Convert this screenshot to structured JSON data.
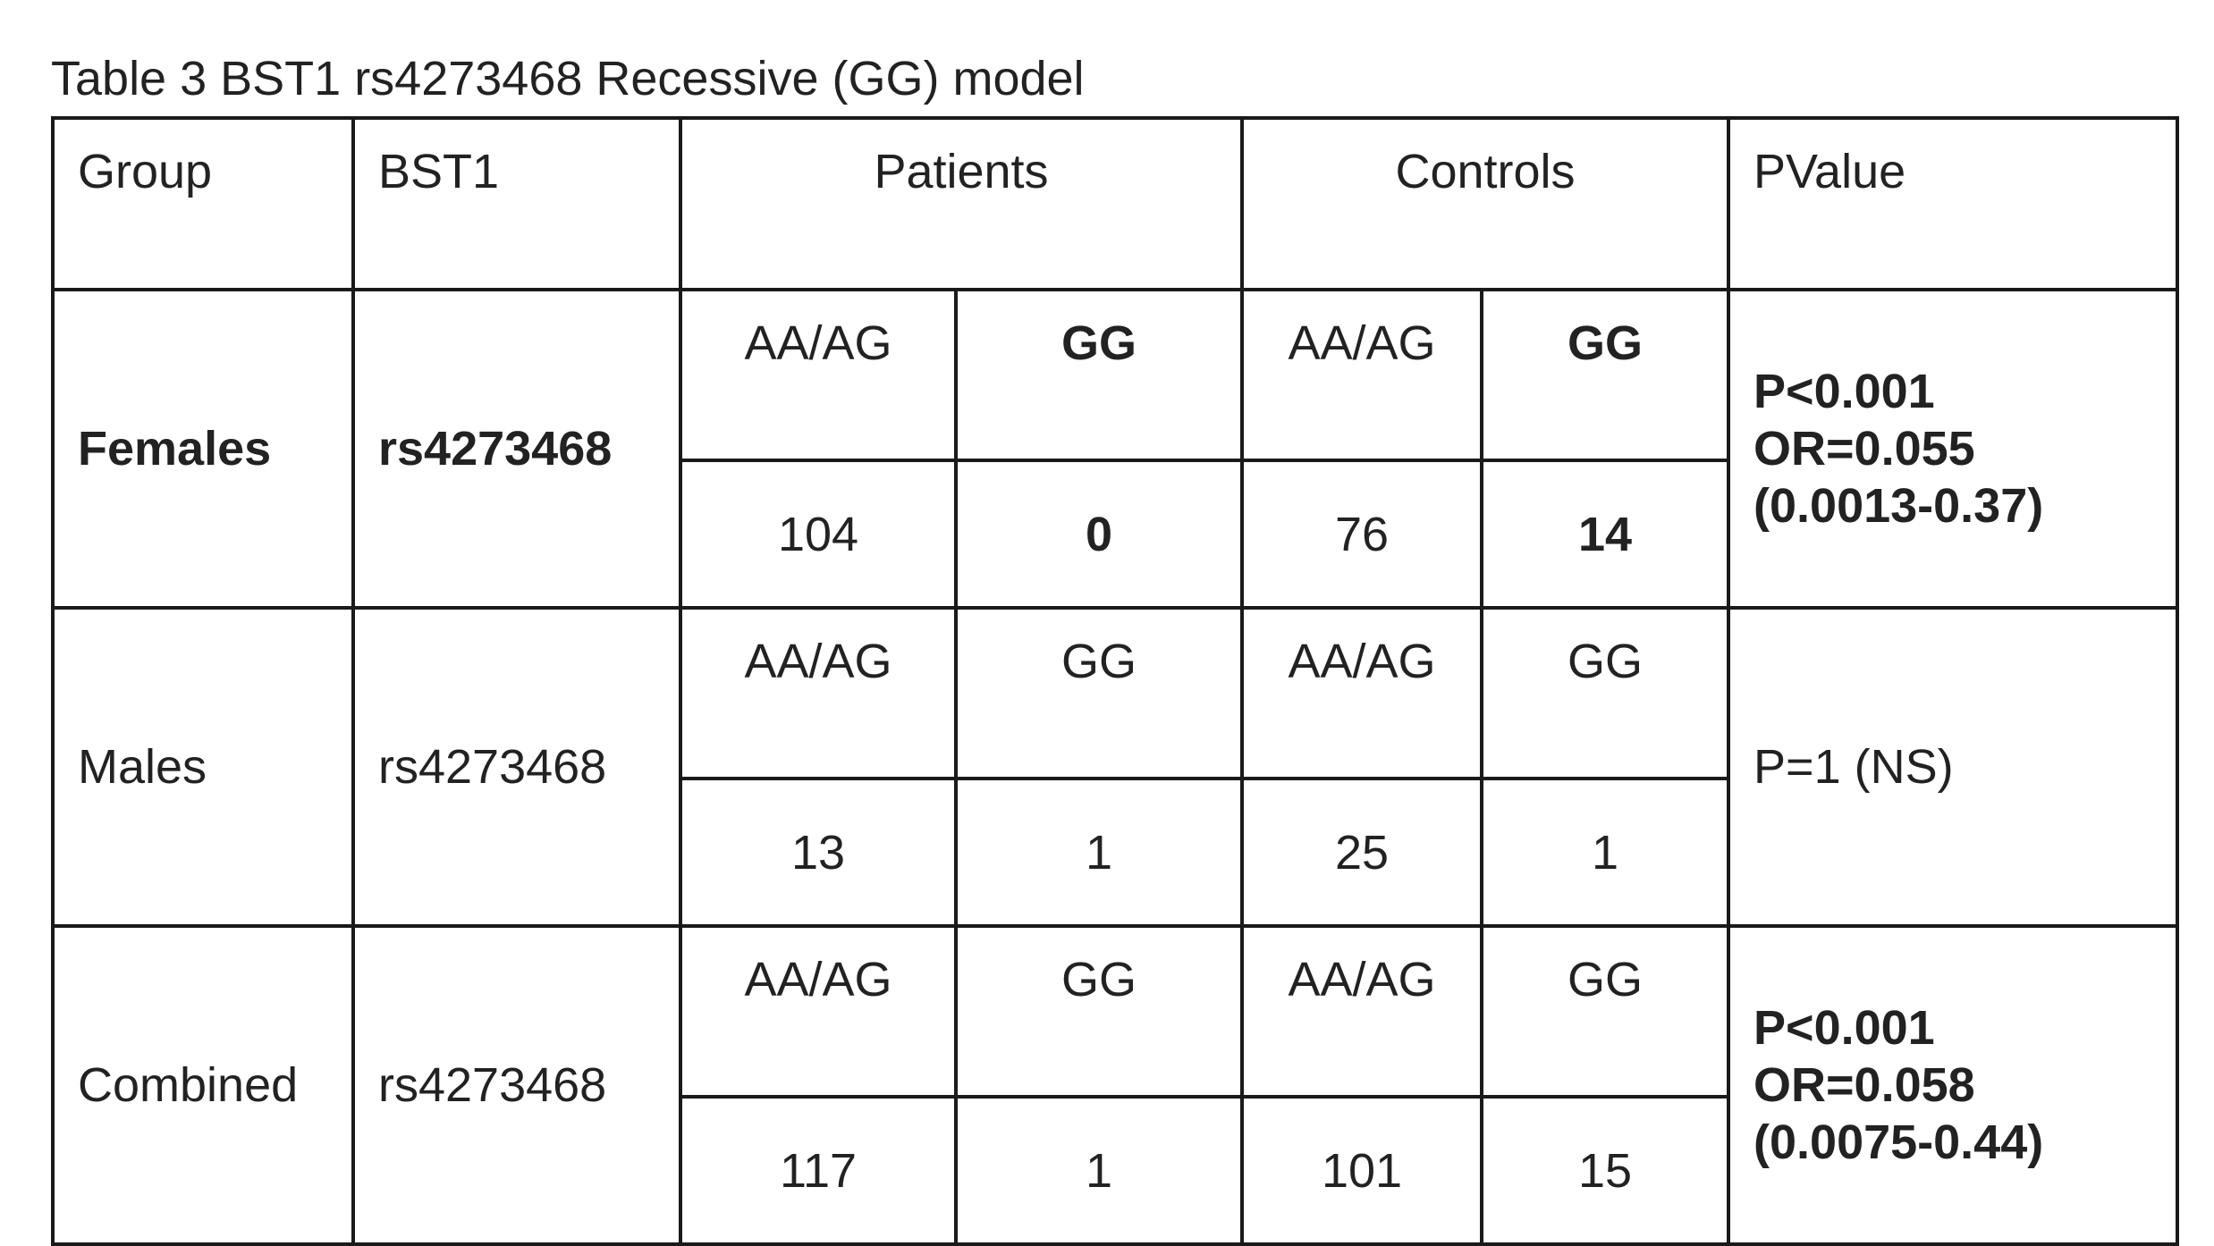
{
  "caption": "Table 3 BST1 rs4273468 Recessive (GG) model",
  "headers": {
    "group": "Group",
    "bst1": "BST1",
    "patients": "Patients",
    "controls": "Controls",
    "pvalue": "PValue"
  },
  "rows": [
    {
      "group": "Females",
      "snp": "rs4273468",
      "emphasis": true,
      "patients_aa_ag_label": "AA/AG",
      "patients_gg_label": "GG",
      "controls_aa_ag_label": "AA/AG",
      "controls_gg_label": "GG",
      "patients_aa_ag": "104",
      "patients_gg": "0",
      "controls_aa_ag": "76",
      "controls_gg": "14",
      "pvalue_lines": [
        "P<0.001",
        "OR=0.055",
        "(0.0013-0.37)"
      ]
    },
    {
      "group": "Males",
      "snp": "rs4273468",
      "emphasis": false,
      "patients_aa_ag_label": "AA/AG",
      "patients_gg_label": "GG",
      "controls_aa_ag_label": "AA/AG",
      "controls_gg_label": "GG",
      "patients_aa_ag": "13",
      "patients_gg": "1",
      "controls_aa_ag": "25",
      "controls_gg": "1",
      "pvalue_lines": [
        "P=1 (NS)"
      ]
    },
    {
      "group": "Combined",
      "snp": "rs4273468",
      "emphasis": false,
      "patients_aa_ag_label": "AA/AG",
      "patients_gg_label": "GG",
      "controls_aa_ag_label": "AA/AG",
      "controls_gg_label": "GG",
      "patients_aa_ag": "117",
      "patients_gg": "1",
      "controls_aa_ag": "101",
      "controls_gg": "15",
      "pvalue_lines": [
        "P<0.001",
        "OR=0.058",
        "(0.0075-0.44)"
      ]
    }
  ]
}
